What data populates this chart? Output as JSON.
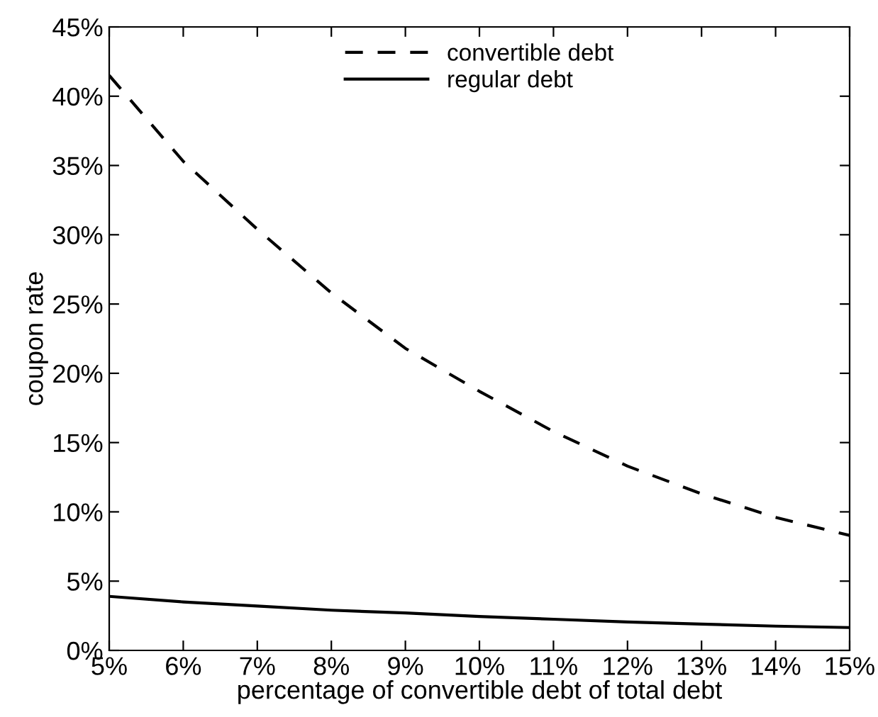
{
  "chart_data": {
    "type": "line",
    "xlabel": "percentage of convertible debt of total debt",
    "ylabel": "coupon rate",
    "x": [
      5,
      6,
      7,
      8,
      9,
      10,
      11,
      12,
      13,
      14,
      15
    ],
    "series": [
      {
        "name": "convertible debt",
        "color": "#000000",
        "line_style": "dashed",
        "values": [
          41.5,
          35.3,
          30.4,
          25.8,
          21.8,
          18.7,
          15.8,
          13.3,
          11.3,
          9.6,
          8.3
        ]
      },
      {
        "name": "regular debt",
        "color": "#000000",
        "line_style": "solid",
        "values": [
          3.9,
          3.5,
          3.2,
          2.9,
          2.7,
          2.45,
          2.25,
          2.05,
          1.9,
          1.75,
          1.65
        ]
      }
    ],
    "xlim": [
      5,
      15
    ],
    "xticks": [
      {
        "value": 5,
        "label": "5%"
      },
      {
        "value": 6,
        "label": "6%"
      },
      {
        "value": 7,
        "label": "7%"
      },
      {
        "value": 8,
        "label": "8%"
      },
      {
        "value": 9,
        "label": "9%"
      },
      {
        "value": 10,
        "label": "10%"
      },
      {
        "value": 11,
        "label": "11%"
      },
      {
        "value": 12,
        "label": "12%"
      },
      {
        "value": 13,
        "label": "13%"
      },
      {
        "value": 14,
        "label": "14%"
      },
      {
        "value": 15,
        "label": "15%"
      }
    ],
    "ylim": [
      0,
      45
    ],
    "yticks": [
      {
        "value": 0,
        "label": "0%"
      },
      {
        "value": 5,
        "label": "5%"
      },
      {
        "value": 10,
        "label": "10%"
      },
      {
        "value": 15,
        "label": "15%"
      },
      {
        "value": 20,
        "label": "20%"
      },
      {
        "value": 25,
        "label": "25%"
      },
      {
        "value": 30,
        "label": "30%"
      },
      {
        "value": 35,
        "label": "35%"
      },
      {
        "value": 40,
        "label": "40%"
      },
      {
        "value": 45,
        "label": "45%"
      }
    ],
    "legend": "top",
    "grid": false
  }
}
